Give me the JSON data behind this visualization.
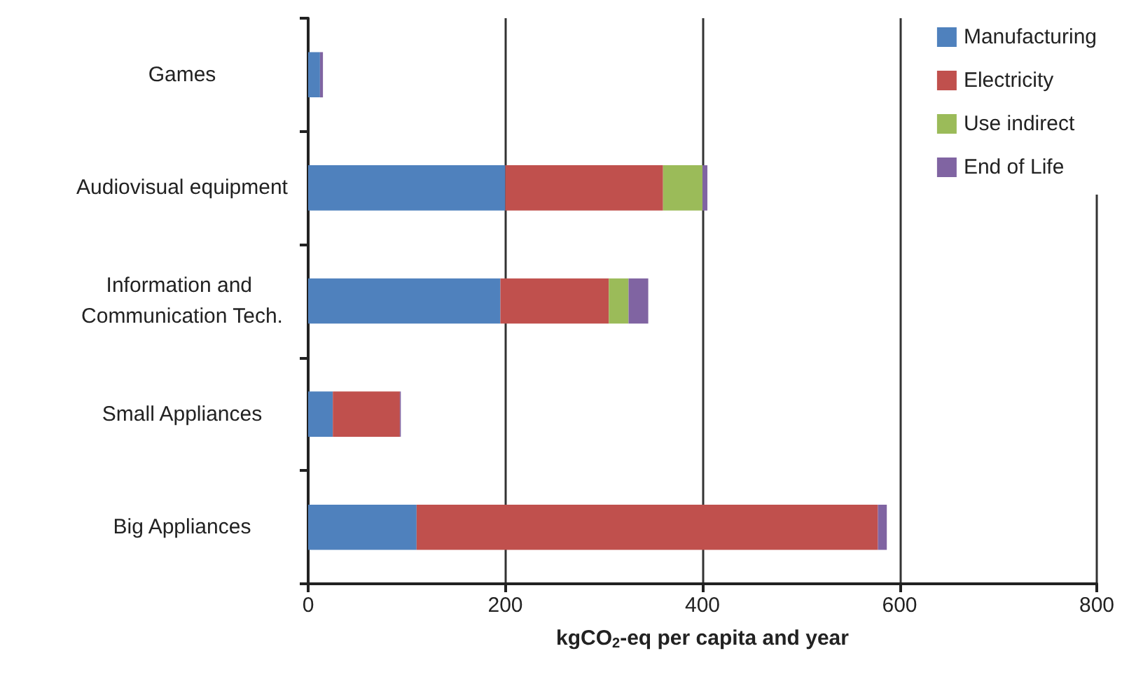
{
  "chart_data": {
    "type": "bar",
    "orientation": "horizontal",
    "stacked": true,
    "xlabel": "kgCO$_{2}$-eq per capita and year",
    "categories": [
      "Games",
      "Audiovisual equipment",
      "Information and Communication Tech.",
      "Small Appliances",
      "Big Appliances"
    ],
    "series": [
      {
        "name": "Manufacturing",
        "color": "#4f81bd",
        "values": [
          12,
          200,
          195,
          25,
          110
        ]
      },
      {
        "name": "Electricity",
        "color": "#c0504d",
        "values": [
          0,
          160,
          110,
          68,
          468
        ]
      },
      {
        "name": "Use indirect",
        "color": "#9bbb59",
        "values": [
          0,
          40,
          20,
          0,
          0
        ]
      },
      {
        "name": "End of Life",
        "color": "#8064a2",
        "values": [
          3,
          5,
          20,
          1,
          9
        ]
      }
    ],
    "xlim": [
      0,
      800
    ],
    "xticks": [
      0,
      200,
      400,
      600,
      800
    ],
    "grid": "x",
    "legend": "top right"
  }
}
